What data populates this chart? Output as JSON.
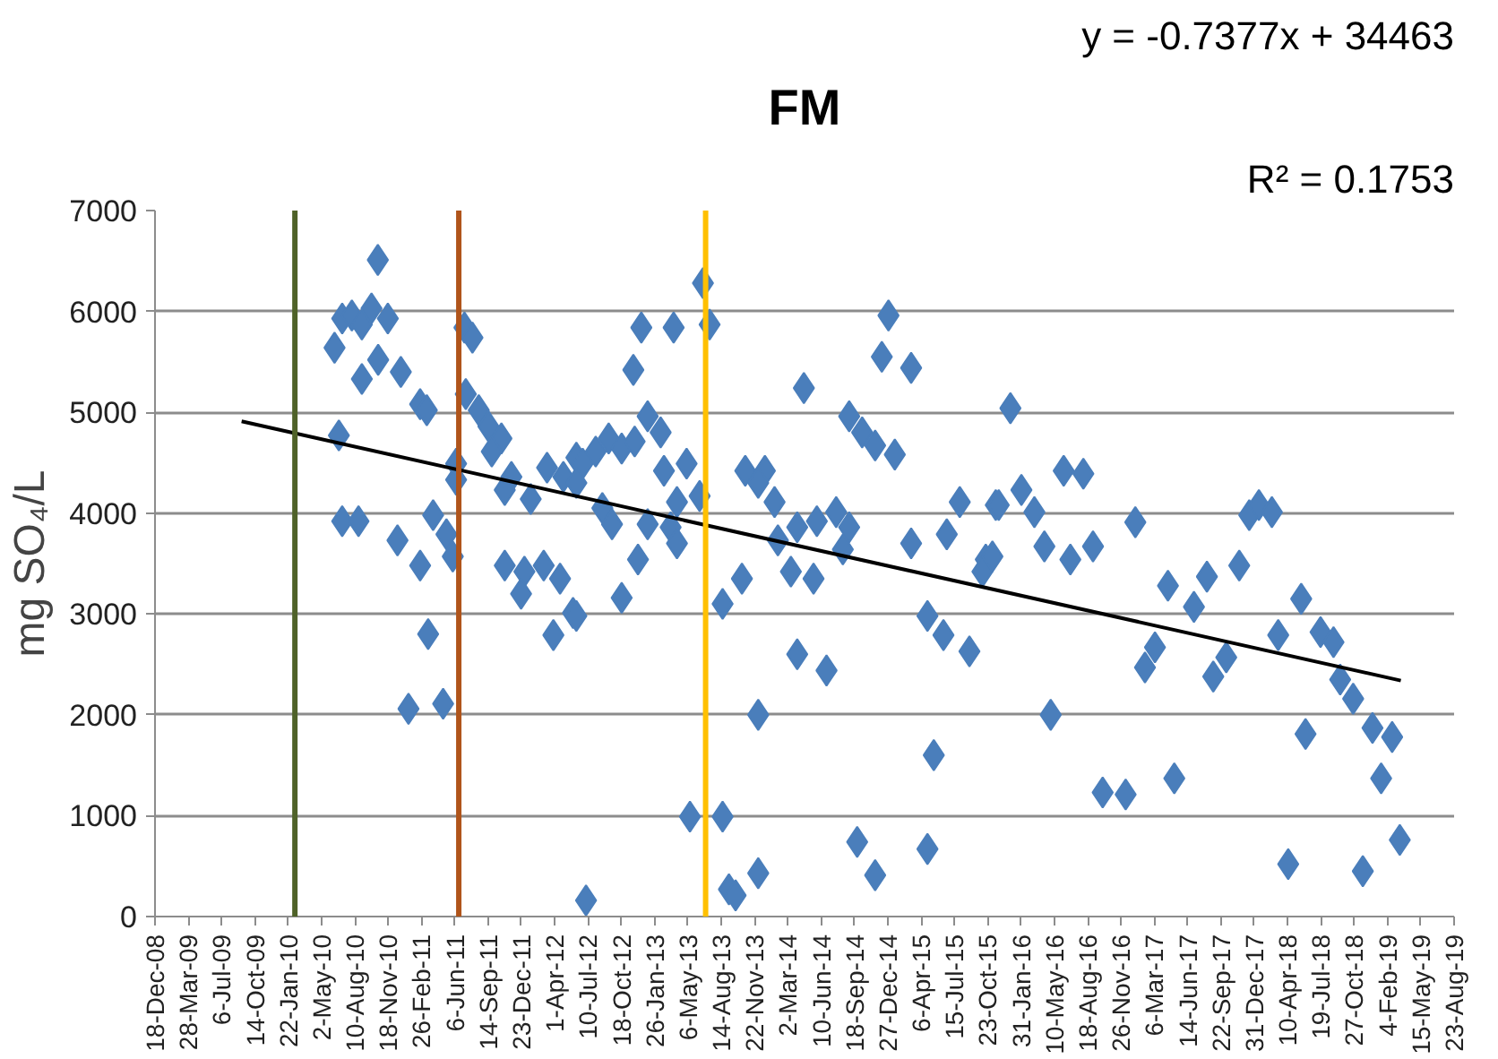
{
  "chart_data": {
    "type": "scatter",
    "title": "FM",
    "ylabel": "mg SO₄/L",
    "annotations": [
      "y = -0.7377x + 34463",
      "R² = 0.1753"
    ],
    "xlim": [
      "2008-12-18",
      "2019-08-23"
    ],
    "xticks": [
      {
        "value": "2008-12-18",
        "label": "18-Dec-08"
      },
      {
        "value": "2009-03-28",
        "label": "28-Mar-09"
      },
      {
        "value": "2009-07-06",
        "label": "6-Jul-09"
      },
      {
        "value": "2009-10-14",
        "label": "14-Oct-09"
      },
      {
        "value": "2010-01-22",
        "label": "22-Jan-10"
      },
      {
        "value": "2010-05-02",
        "label": "2-May-10"
      },
      {
        "value": "2010-08-10",
        "label": "10-Aug-10"
      },
      {
        "value": "2010-11-18",
        "label": "18-Nov-10"
      },
      {
        "value": "2011-02-26",
        "label": "26-Feb-11"
      },
      {
        "value": "2011-06-06",
        "label": "6-Jun-11"
      },
      {
        "value": "2011-09-14",
        "label": "14-Sep-11"
      },
      {
        "value": "2011-12-23",
        "label": "23-Dec-11"
      },
      {
        "value": "2012-04-01",
        "label": "1-Apr-12"
      },
      {
        "value": "2012-07-10",
        "label": "10-Jul-12"
      },
      {
        "value": "2012-10-18",
        "label": "18-Oct-12"
      },
      {
        "value": "2013-01-26",
        "label": "26-Jan-13"
      },
      {
        "value": "2013-05-06",
        "label": "6-May-13"
      },
      {
        "value": "2013-08-14",
        "label": "14-Aug-13"
      },
      {
        "value": "2013-11-22",
        "label": "22-Nov-13"
      },
      {
        "value": "2014-03-02",
        "label": "2-Mar-14"
      },
      {
        "value": "2014-06-10",
        "label": "10-Jun-14"
      },
      {
        "value": "2014-09-18",
        "label": "18-Sep-14"
      },
      {
        "value": "2014-12-27",
        "label": "27-Dec-14"
      },
      {
        "value": "2015-04-06",
        "label": "6-Apr-15"
      },
      {
        "value": "2015-07-15",
        "label": "15-Jul-15"
      },
      {
        "value": "2015-10-23",
        "label": "23-Oct-15"
      },
      {
        "value": "2016-01-31",
        "label": "31-Jan-16"
      },
      {
        "value": "2016-05-10",
        "label": "10-May-16"
      },
      {
        "value": "2016-08-18",
        "label": "18-Aug-16"
      },
      {
        "value": "2016-11-26",
        "label": "26-Nov-16"
      },
      {
        "value": "2017-03-06",
        "label": "6-Mar-17"
      },
      {
        "value": "2017-06-14",
        "label": "14-Jun-17"
      },
      {
        "value": "2017-09-22",
        "label": "22-Sep-17"
      },
      {
        "value": "2017-12-31",
        "label": "31-Dec-17"
      },
      {
        "value": "2018-04-10",
        "label": "10-Apr-18"
      },
      {
        "value": "2018-07-19",
        "label": "19-Jul-18"
      },
      {
        "value": "2018-10-27",
        "label": "27-Oct-18"
      },
      {
        "value": "2019-02-04",
        "label": "4-Feb-19"
      },
      {
        "value": "2019-05-15",
        "label": "15-May-19"
      },
      {
        "value": "2019-08-23",
        "label": "23-Aug-19"
      }
    ],
    "ylim": [
      0,
      7000
    ],
    "yticks": [
      0,
      1000,
      2000,
      3000,
      4000,
      5000,
      6000,
      7000
    ],
    "grid": "y",
    "ref_lines": [
      {
        "axis": "x",
        "value": "2010-02-11",
        "color": "#4f6228"
      },
      {
        "axis": "x",
        "value": "2011-06-18",
        "color": "#b0541a"
      },
      {
        "axis": "x",
        "value": "2013-06-28",
        "color": "#ffc000"
      }
    ],
    "series": [
      {
        "color": "#4a7ebb",
        "marker": "diamond",
        "x": [
          "2010-10-18",
          "2010-07-03",
          "2010-08-01",
          "2010-09-29",
          "2010-11-17",
          "2010-08-31",
          "2010-06-10",
          "2010-10-19",
          "2010-12-26",
          "2010-08-31",
          "2011-02-22",
          "2011-03-14",
          "2011-07-05",
          "2011-07-29",
          "2011-07-09",
          "2011-08-17",
          "2011-09-15",
          "2011-10-24",
          "2011-09-25",
          "2011-06-10",
          "2011-06-10",
          "2011-11-23",
          "2011-11-03",
          "2012-01-20",
          "2012-03-09",
          "2012-04-27",
          "2012-06-05",
          "2010-06-23",
          "2010-07-03",
          "2010-08-21",
          "2010-12-16",
          "2011-04-02",
          "2011-05-12",
          "2011-02-22",
          "2011-05-31",
          "2011-11-03",
          "2012-01-01",
          "2011-12-22",
          "2012-02-28",
          "2012-04-17",
          "2012-03-28",
          "2012-05-26",
          "2011-03-18",
          "2011-01-18",
          "2011-05-02",
          "2012-07-04",
          "2013-06-20",
          "2012-12-17",
          "2013-03-24",
          "2013-07-10",
          "2012-11-23",
          "2013-01-05",
          "2013-02-13",
          "2014-12-29",
          "2014-12-09",
          "2015-03-07",
          "2014-04-19",
          "2014-09-02",
          "2014-10-11",
          "2014-11-19",
          "2015-01-17",
          "2012-06-24",
          "2012-08-02",
          "2012-09-10",
          "2012-10-19",
          "2012-11-27",
          "2012-06-05",
          "2012-08-22",
          "2012-09-20",
          "2012-12-07",
          "2012-10-19",
          "2012-06-05",
          "2013-01-05",
          "2013-02-23",
          "2013-05-02",
          "2013-04-03",
          "2013-06-10",
          "2013-03-15",
          "2013-04-03",
          "2013-10-15",
          "2013-08-18",
          "2013-10-25",
          "2013-12-23",
          "2013-12-03",
          "2014-01-21",
          "2014-01-31",
          "2014-03-11",
          "2014-05-18",
          "2014-03-30",
          "2014-05-28",
          "2014-07-25",
          "2014-09-02",
          "2014-08-14",
          "2015-03-07",
          "2015-06-22",
          "2015-07-31",
          "2015-11-16",
          "2015-10-17",
          "2015-10-07",
          "2015-04-25",
          "2015-06-12",
          "2015-08-29",
          "2014-03-30",
          "2014-06-26",
          "2013-12-03",
          "2015-05-14",
          "2013-05-12",
          "2013-08-18",
          "2013-09-06",
          "2013-09-26",
          "2013-12-03",
          "2014-09-26",
          "2014-11-19",
          "2015-04-25",
          "2015-12-30",
          "2015-11-25",
          "2016-02-01",
          "2016-03-11",
          "2015-11-06",
          "2016-04-10",
          "2016-06-07",
          "2016-08-05",
          "2016-06-27",
          "2016-09-03",
          "2017-01-08",
          "2016-04-29",
          "2017-04-16",
          "2017-07-03",
          "2017-08-11",
          "2017-11-16",
          "2017-12-16",
          "2018-01-14",
          "2018-02-22",
          "2017-03-08",
          "2017-02-06",
          "2017-10-08",
          "2017-08-30",
          "2018-05-21",
          "2018-03-13",
          "2018-07-18",
          "2018-08-26",
          "2018-09-15",
          "2018-10-24",
          "2018-12-21",
          "2019-02-18",
          "2018-06-03",
          "2019-01-16",
          "2017-05-05",
          "2016-10-02",
          "2016-12-10",
          "2018-04-12",
          "2018-11-22",
          "2019-03-13"
        ],
        "values": [
          6510,
          5930,
          5960,
          6030,
          5930,
          5870,
          5640,
          5520,
          5400,
          5330,
          5080,
          5020,
          5840,
          5740,
          5180,
          5020,
          4860,
          4740,
          4610,
          4490,
          4330,
          4360,
          4230,
          4140,
          4450,
          4360,
          4550,
          4770,
          3920,
          3920,
          3730,
          3980,
          3790,
          3480,
          3570,
          3480,
          3420,
          3200,
          3480,
          3350,
          2790,
          3010,
          2800,
          2060,
          2110,
          160,
          6280,
          5840,
          5840,
          5870,
          5420,
          4960,
          4800,
          5960,
          5550,
          5440,
          5240,
          4960,
          4800,
          4670,
          4580,
          4490,
          4610,
          4740,
          4640,
          4710,
          4300,
          4050,
          3890,
          3540,
          3160,
          2980,
          3890,
          4420,
          4490,
          4110,
          4170,
          3860,
          3700,
          3350,
          3100,
          4420,
          4420,
          4300,
          4110,
          3730,
          3420,
          3350,
          3860,
          3920,
          4010,
          3860,
          3640,
          3700,
          3790,
          4110,
          4080,
          3540,
          3420,
          2980,
          2790,
          2630,
          2600,
          2440,
          2000,
          1600,
          990,
          990,
          270,
          210,
          430,
          740,
          410,
          670,
          5040,
          4080,
          4230,
          4010,
          3570,
          3670,
          4420,
          4390,
          3540,
          3670,
          3910,
          2000,
          3280,
          3070,
          3370,
          3480,
          3980,
          4080,
          4010,
          2670,
          2470,
          2570,
          2380,
          3150,
          2790,
          2820,
          2720,
          2350,
          2160,
          1870,
          1780,
          1810,
          1370,
          1370,
          1230,
          1210,
          520,
          450,
          760
        ]
      },
      {
        "type": "line",
        "color": "#000000",
        "x": [
          "2009-09-04",
          "2019-03-16"
        ],
        "values": [
          4910,
          2340
        ]
      }
    ]
  }
}
